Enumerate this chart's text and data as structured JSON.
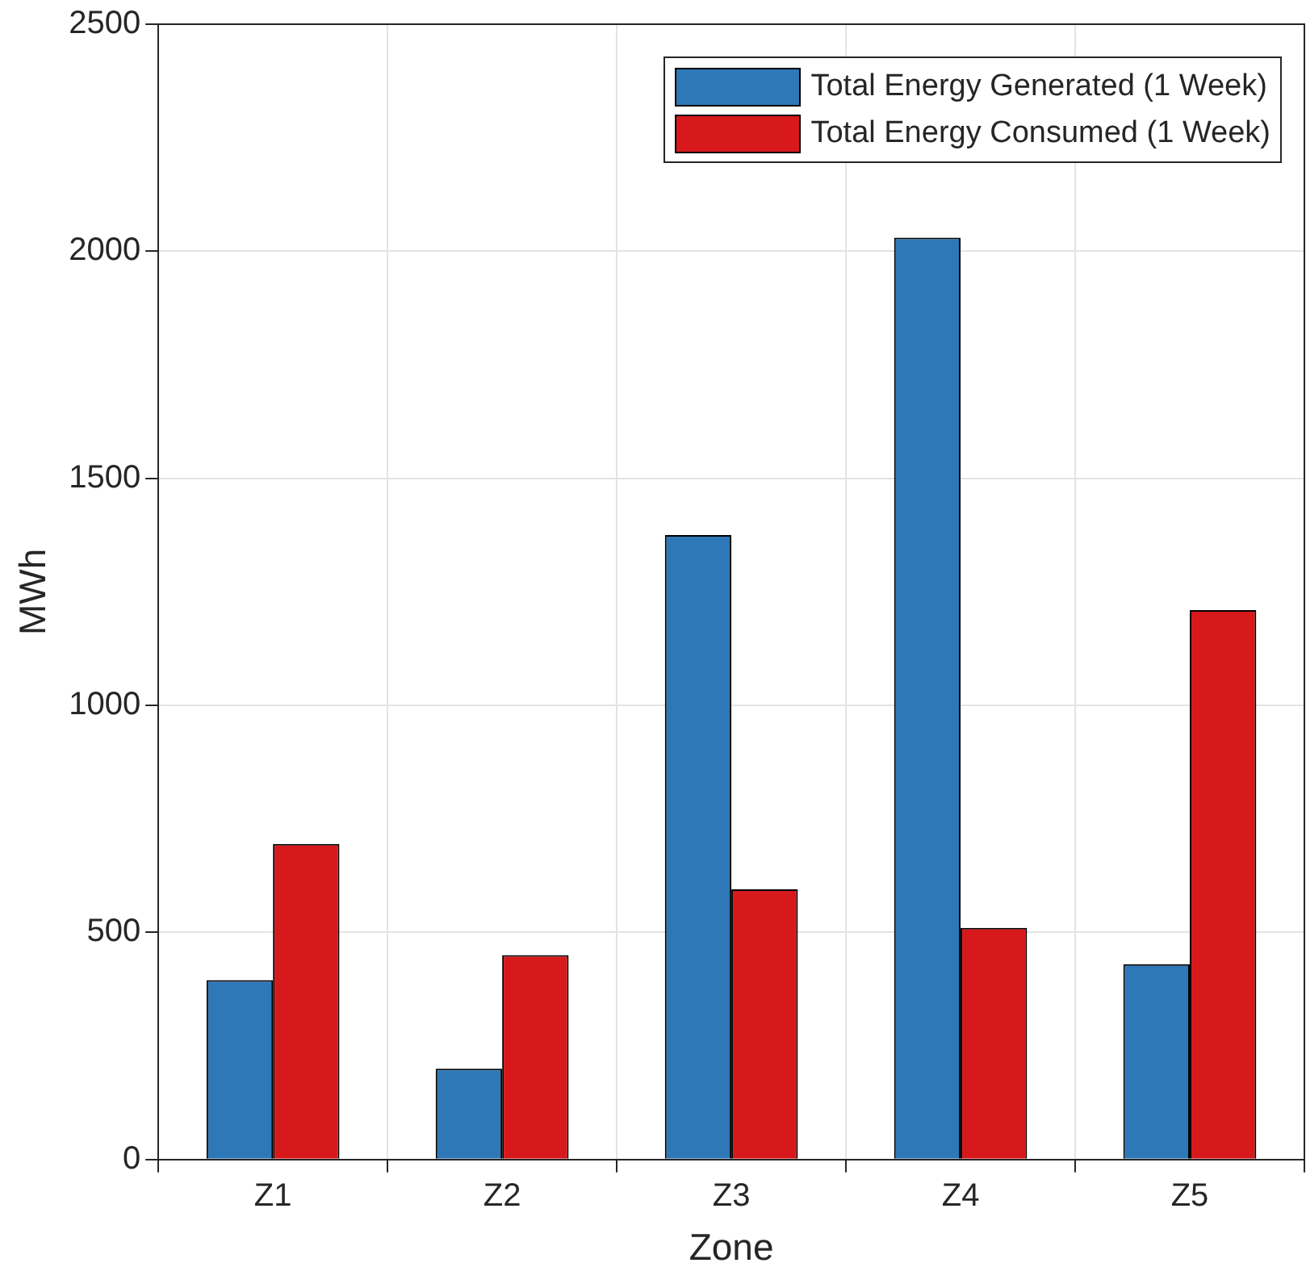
{
  "chart_data": {
    "type": "bar",
    "xlabel": "Zone",
    "ylabel": "MWh",
    "categories": [
      "Z1",
      "Z2",
      "Z3",
      "Z4",
      "Z5"
    ],
    "series": [
      {
        "name": "Total Energy Generated (1 Week)",
        "color": "#2e78b7",
        "values": [
          395,
          200,
          1375,
          2030,
          430
        ]
      },
      {
        "name": "Total Energy Consumed (1 Week)",
        "color": "#d7191c",
        "values": [
          695,
          450,
          595,
          510,
          1210
        ]
      }
    ],
    "ylim": [
      0,
      2500
    ],
    "yticks": [
      0,
      500,
      1000,
      1500,
      2000,
      2500
    ],
    "grid": true,
    "legend": "top right"
  }
}
